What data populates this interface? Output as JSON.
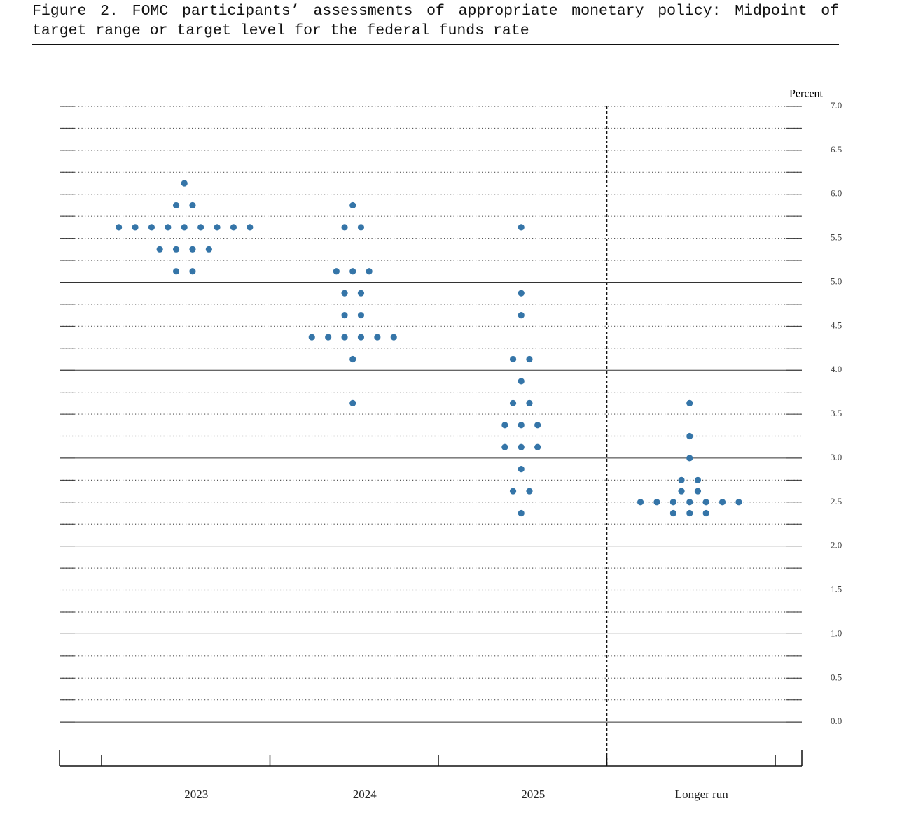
{
  "chart_data": {
    "type": "dot",
    "title": "Figure 2.  FOMC participants’ assessments of appropriate monetary policy:  Midpoint of target range or target level for the federal funds rate",
    "y_label": "Percent",
    "categories": [
      "2023",
      "2024",
      "2025",
      "Longer run"
    ],
    "values": [
      [
        6.125,
        5.875,
        5.875,
        5.625,
        5.625,
        5.625,
        5.625,
        5.625,
        5.625,
        5.625,
        5.625,
        5.625,
        5.375,
        5.375,
        5.375,
        5.375,
        5.125,
        5.125
      ],
      [
        5.875,
        5.625,
        5.625,
        5.125,
        5.125,
        5.125,
        4.875,
        4.875,
        4.625,
        4.625,
        4.375,
        4.375,
        4.375,
        4.375,
        4.375,
        4.375,
        4.125,
        3.625
      ],
      [
        5.625,
        4.875,
        4.625,
        4.125,
        4.125,
        3.875,
        3.625,
        3.625,
        3.375,
        3.375,
        3.375,
        3.125,
        3.125,
        3.125,
        2.875,
        2.625,
        2.625,
        2.375
      ],
      [
        3.625,
        3.25,
        3.0,
        2.75,
        2.75,
        2.625,
        2.625,
        2.5,
        2.5,
        2.5,
        2.5,
        2.5,
        2.5,
        2.5,
        2.375,
        2.375,
        2.375
      ]
    ],
    "color": "#3575a8",
    "ylim": [
      -0.5,
      7
    ],
    "yticks": [
      {
        "value": 0,
        "label": "0.0"
      },
      {
        "value": 0.5,
        "label": "0.5"
      },
      {
        "value": 1,
        "label": "1.0"
      },
      {
        "value": 1.5,
        "label": "1.5"
      },
      {
        "value": 2,
        "label": "2.0"
      },
      {
        "value": 2.5,
        "label": "2.5"
      },
      {
        "value": 3,
        "label": "3.0"
      },
      {
        "value": 3.5,
        "label": "3.5"
      },
      {
        "value": 4,
        "label": "4.0"
      },
      {
        "value": 4.5,
        "label": "4.5"
      },
      {
        "value": 5,
        "label": "5.0"
      },
      {
        "value": 5.5,
        "label": "5.5"
      },
      {
        "value": 6,
        "label": "6.0"
      },
      {
        "value": 6.5,
        "label": "6.5"
      },
      {
        "value": 7,
        "label": "7.0"
      }
    ],
    "yticks_minor": [
      0.25,
      0.75,
      1.25,
      1.75,
      2.25,
      2.75,
      3.25,
      3.75,
      4.25,
      4.75,
      5.25,
      5.75,
      6.25,
      6.75
    ],
    "grid": true
  }
}
